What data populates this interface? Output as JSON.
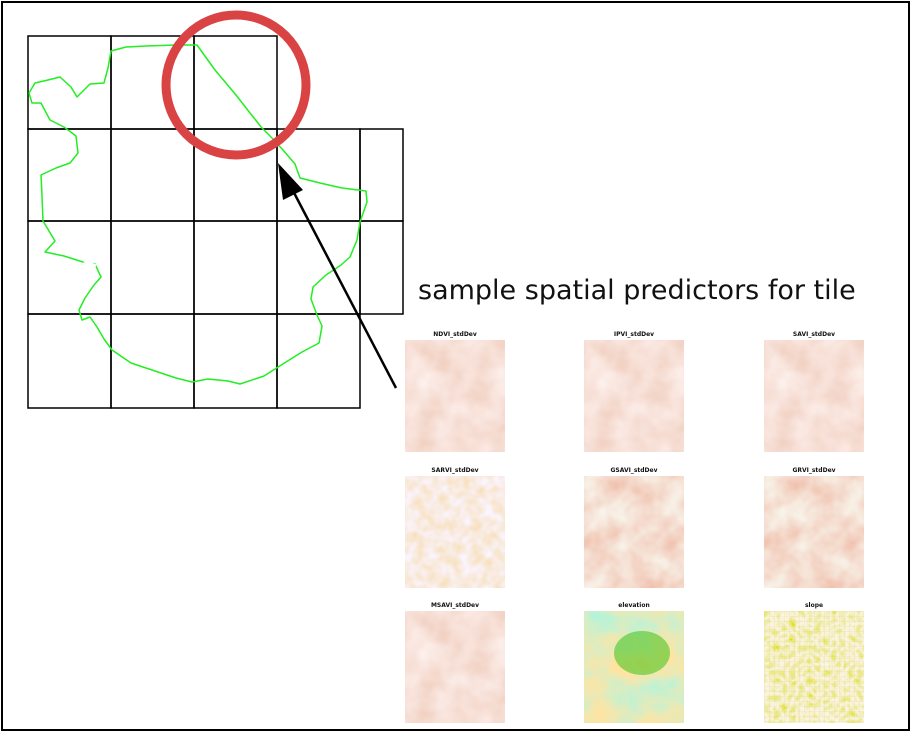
{
  "caption": "sample spatial predictors for tile",
  "colors": {
    "grid": "#000000",
    "boundary": "#22ee22",
    "highlight_circle": "#d94343",
    "arrow": "#000000",
    "raster_low": "#eec2ae",
    "raster_mid": "#e9a57d",
    "raster_high_yellow": "#d9d21a",
    "raster_high_green": "#3cc21a"
  },
  "panels": [
    {
      "title": "NDVI_stdDev",
      "style": "soft"
    },
    {
      "title": "IPVI_stdDev",
      "style": "soft"
    },
    {
      "title": "SAVI_stdDev",
      "style": "soft"
    },
    {
      "title": "SARVI_stdDev",
      "style": "speckle"
    },
    {
      "title": "GSAVI_stdDev",
      "style": "warm"
    },
    {
      "title": "GRVI_stdDev",
      "style": "warm"
    },
    {
      "title": "MSAVI_stdDev",
      "style": "soft"
    },
    {
      "title": "elevation",
      "style": "elevation"
    },
    {
      "title": "slope",
      "style": "slope"
    }
  ]
}
